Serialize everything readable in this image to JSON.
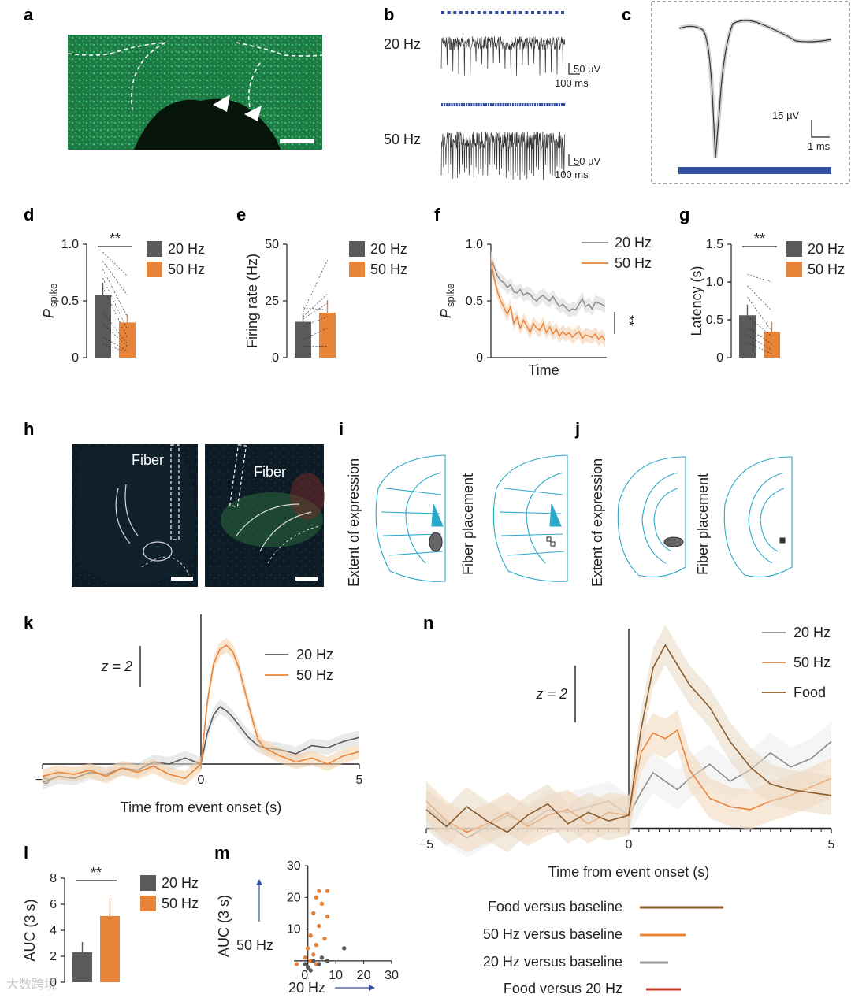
{
  "colors": {
    "hz20": "#5a5a5a",
    "hz50": "#e8843a",
    "food": "#8a5a2b",
    "gray_line": "#8c8c8c",
    "blue": "#2f4fa0",
    "red": "#c0392b",
    "atlas": "#2aa8c8",
    "micro_green": "#1a8a4a"
  },
  "panels": {
    "a": "a",
    "b": "b",
    "c": "c",
    "d": "d",
    "e": "e",
    "f": "f",
    "g": "g",
    "h": "h",
    "i": "i",
    "j": "j",
    "k": "k",
    "l": "l",
    "m": "m",
    "n": "n"
  },
  "panel_b": {
    "label_20": "20 Hz",
    "label_50": "50 Hz",
    "scale_v_1": "50 µV",
    "scale_t_1": "100 ms",
    "scale_v_2": "50 µV",
    "scale_t_2": "100 ms"
  },
  "panel_c": {
    "scale_v": "15 µV",
    "scale_t": "1 ms"
  },
  "panel_h": {
    "fiber_1": "Fiber",
    "fiber_2": "Fiber"
  },
  "panel_i": {
    "label_1": "Extent of expression",
    "label_2": "Fiber placement"
  },
  "panel_j": {
    "label_1": "Extent of expression",
    "label_2": "Fiber placement"
  },
  "panel_n_legend": {
    "row1": "Food versus baseline",
    "row2": "50 Hz versus baseline",
    "row3": "20 Hz versus baseline",
    "row4": "Food versus 20 Hz"
  },
  "watermark": "大数跨境",
  "chart_data": [
    {
      "id": "d",
      "type": "bar",
      "categories": [
        "20 Hz",
        "50 Hz"
      ],
      "values": [
        0.55,
        0.31
      ],
      "errors": [
        0.11,
        0.07
      ],
      "paired_lines": [
        [
          0.93,
          0.72
        ],
        [
          0.85,
          0.55
        ],
        [
          0.78,
          0.36
        ],
        [
          0.7,
          0.25
        ],
        [
          0.62,
          0.18
        ],
        [
          0.4,
          0.12
        ],
        [
          0.3,
          0.1
        ],
        [
          0.18,
          0.06
        ],
        [
          0.12,
          0.05
        ]
      ],
      "ylabel_main": "P",
      "ylabel_sub": "spike",
      "ylim": [
        0,
        1.0
      ],
      "yticks": [
        "0",
        "0.5",
        "1.0"
      ],
      "significance": "**",
      "legend": [
        "20 Hz",
        "50 Hz"
      ]
    },
    {
      "id": "e",
      "type": "bar",
      "categories": [
        "20 Hz",
        "50 Hz"
      ],
      "values": [
        15.8,
        19.8
      ],
      "errors": [
        3.5,
        5.5
      ],
      "paired_lines": [
        [
          20,
          43
        ],
        [
          18,
          28
        ],
        [
          17,
          24
        ],
        [
          22,
          21
        ],
        [
          14,
          18
        ],
        [
          8,
          13
        ],
        [
          5,
          5
        ]
      ],
      "ylabel": "Firing rate (Hz)",
      "ylim": [
        0,
        50
      ],
      "yticks": [
        "0",
        "25",
        "50"
      ],
      "legend": [
        "20 Hz",
        "50 Hz"
      ]
    },
    {
      "id": "f",
      "type": "line",
      "series": [
        {
          "name": "20 Hz",
          "values": [
            0.88,
            0.8,
            0.72,
            0.68,
            0.66,
            0.62,
            0.64,
            0.58,
            0.57,
            0.6,
            0.55,
            0.57,
            0.56,
            0.52,
            0.5,
            0.53,
            0.55,
            0.52,
            0.5,
            0.54,
            0.49,
            0.45,
            0.47,
            0.44,
            0.41,
            0.43,
            0.42,
            0.47,
            0.52,
            0.45,
            0.47,
            0.43,
            0.49,
            0.48,
            0.47,
            0.45
          ]
        },
        {
          "name": "50 Hz",
          "values": [
            0.85,
            0.7,
            0.58,
            0.5,
            0.44,
            0.38,
            0.45,
            0.3,
            0.36,
            0.26,
            0.33,
            0.28,
            0.22,
            0.3,
            0.26,
            0.24,
            0.3,
            0.22,
            0.27,
            0.21,
            0.25,
            0.19,
            0.23,
            0.2,
            0.22,
            0.18,
            0.21,
            0.23,
            0.17,
            0.2,
            0.19,
            0.18,
            0.21,
            0.16,
            0.19,
            0.15
          ]
        }
      ],
      "xlabel": "Time",
      "ylabel_main": "P",
      "ylabel_sub": "spike",
      "ylim": [
        0,
        1.0
      ],
      "yticks": [
        "0",
        "0.5",
        "1.0"
      ],
      "significance": "**"
    },
    {
      "id": "g",
      "type": "bar",
      "categories": [
        "20 Hz",
        "50 Hz"
      ],
      "values": [
        0.56,
        0.34
      ],
      "errors": [
        0.14,
        0.13
      ],
      "paired_lines": [
        [
          1.1,
          1.0
        ],
        [
          0.95,
          0.62
        ],
        [
          0.8,
          0.35
        ],
        [
          0.55,
          0.28
        ],
        [
          0.4,
          0.18
        ],
        [
          0.3,
          0.1
        ],
        [
          0.2,
          0.05
        ]
      ],
      "ylabel": "Latency (s)",
      "ylim": [
        0,
        1.5
      ],
      "yticks": [
        "0",
        "0.5",
        "1.0",
        "1.5"
      ],
      "significance": "**",
      "legend": [
        "20 Hz",
        "50 Hz"
      ]
    },
    {
      "id": "k",
      "type": "line",
      "x_range": [
        -5,
        5
      ],
      "xticks": [
        "−5",
        "0",
        "5"
      ],
      "xlabel": "Time from event onset (s)",
      "scalebar": "z = 2",
      "series": [
        {
          "name": "20 Hz",
          "x": [
            -5,
            -4.5,
            -4,
            -3.5,
            -3,
            -2.5,
            -2,
            -1.5,
            -1,
            -0.5,
            0,
            0.2,
            0.4,
            0.6,
            0.8,
            1.0,
            1.2,
            1.5,
            1.8,
            2,
            2.5,
            3,
            3.5,
            4,
            4.5,
            5
          ],
          "values": [
            -0.9,
            -0.6,
            -0.7,
            -0.4,
            -0.5,
            -0.2,
            -0.3,
            0.1,
            0.0,
            0.3,
            0.0,
            1.5,
            2.4,
            2.8,
            2.6,
            2.3,
            1.9,
            1.3,
            0.9,
            0.8,
            0.7,
            0.5,
            0.9,
            0.8,
            1.1,
            1.3
          ]
        },
        {
          "name": "50 Hz",
          "x": [
            -5,
            -4.5,
            -4,
            -3.5,
            -3,
            -2.5,
            -2,
            -1.5,
            -1,
            -0.5,
            0,
            0.2,
            0.4,
            0.6,
            0.8,
            1.0,
            1.2,
            1.5,
            1.8,
            2,
            2.5,
            3,
            3.5,
            4,
            4.5,
            5
          ],
          "values": [
            -0.6,
            -0.4,
            -0.5,
            -0.3,
            -0.6,
            -0.2,
            -0.4,
            -0.1,
            -0.5,
            -0.7,
            0.0,
            3.0,
            4.9,
            5.6,
            5.8,
            5.5,
            4.7,
            2.9,
            1.2,
            0.8,
            0.4,
            0.1,
            0.3,
            0.0,
            0.4,
            0.6
          ]
        }
      ]
    },
    {
      "id": "l",
      "type": "bar",
      "categories": [
        "20 Hz",
        "50 Hz"
      ],
      "values": [
        2.3,
        5.1
      ],
      "errors": [
        0.8,
        1.4
      ],
      "ylabel": "AUC (3 s)",
      "ylim": [
        0,
        8
      ],
      "yticks": [
        "0",
        "2",
        "4",
        "6",
        "8"
      ],
      "significance": "**",
      "legend": [
        "20 Hz",
        "50 Hz"
      ]
    },
    {
      "id": "m",
      "type": "scatter",
      "xlabel": "20 Hz",
      "ylabel": "AUC (3 s)",
      "ylabel2": "50 Hz",
      "xticks": [
        "0",
        "10",
        "20",
        "30"
      ],
      "yticks": [
        "0",
        "10",
        "20",
        "30"
      ],
      "xlim": [
        -5,
        30
      ],
      "ylim": [
        -3,
        30
      ],
      "series": [
        {
          "name": "50 Hz",
          "color": "orange",
          "points": [
            [
              4,
              22
            ],
            [
              7,
              22
            ],
            [
              3,
              20
            ],
            [
              5,
              18
            ],
            [
              2,
              15
            ],
            [
              7,
              14
            ],
            [
              4,
              11
            ],
            [
              1,
              8
            ],
            [
              6,
              7
            ],
            [
              3,
              5
            ],
            [
              0,
              4
            ],
            [
              2,
              2
            ],
            [
              -1,
              1
            ],
            [
              1,
              0
            ],
            [
              -4,
              -1
            ],
            [
              3,
              -1
            ]
          ]
        },
        {
          "name": "20 Hz",
          "color": "gray",
          "points": [
            [
              13,
              4
            ],
            [
              5,
              1
            ],
            [
              7,
              0
            ],
            [
              2,
              0
            ],
            [
              -1,
              -1
            ],
            [
              0,
              -2
            ],
            [
              1,
              -3
            ],
            [
              4,
              -1
            ]
          ]
        }
      ]
    },
    {
      "id": "n",
      "type": "line",
      "x_range": [
        -5,
        5
      ],
      "xticks": [
        "−5",
        "0",
        "5"
      ],
      "xlabel": "Time from event onset (s)",
      "scalebar": "z = 2",
      "series": [
        {
          "name": "20 Hz",
          "x": [
            -5,
            -4.5,
            -4,
            -3.5,
            -3,
            -2.5,
            -2,
            -1.5,
            -1,
            -0.5,
            0,
            0.3,
            0.6,
            0.9,
            1.2,
            1.5,
            2,
            2.5,
            3,
            3.5,
            4,
            4.5,
            5
          ],
          "values": [
            0.3,
            -0.3,
            -0.8,
            -0.4,
            0.0,
            -0.3,
            0.2,
            0.1,
            0.3,
            0.5,
            0.0,
            0.8,
            1.5,
            1.2,
            0.9,
            1.3,
            1.8,
            1.2,
            1.6,
            2.2,
            1.7,
            2.0,
            2.6
          ]
        },
        {
          "name": "50 Hz",
          "x": [
            -5,
            -4.5,
            -4,
            -3.5,
            -3,
            -2.5,
            -2,
            -1.5,
            -1,
            -0.5,
            0,
            0.3,
            0.6,
            0.9,
            1.2,
            1.5,
            2,
            2.5,
            3,
            3.5,
            4,
            4.5,
            5
          ],
          "values": [
            0.5,
            -0.2,
            -0.6,
            -0.3,
            0.1,
            -0.4,
            0.0,
            0.2,
            -0.3,
            0.1,
            0.0,
            2.2,
            2.9,
            2.7,
            3.0,
            1.6,
            0.6,
            0.3,
            0.2,
            0.5,
            0.7,
            1.0,
            1.3
          ]
        },
        {
          "name": "Food",
          "x": [
            -5,
            -4.5,
            -4,
            -3.5,
            -3,
            -2.5,
            -2,
            -1.5,
            -1,
            -0.5,
            0,
            0.3,
            0.6,
            0.9,
            1.2,
            1.5,
            2,
            2.5,
            3,
            3.5,
            4,
            4.5,
            5
          ],
          "values": [
            0.2,
            -0.4,
            0.3,
            -0.2,
            -0.6,
            0.0,
            0.4,
            -0.3,
            0.1,
            -0.2,
            0.0,
            3.0,
            5.2,
            6.0,
            5.3,
            4.6,
            3.8,
            2.6,
            1.7,
            1.1,
            0.9,
            0.8,
            0.7
          ]
        }
      ]
    }
  ]
}
